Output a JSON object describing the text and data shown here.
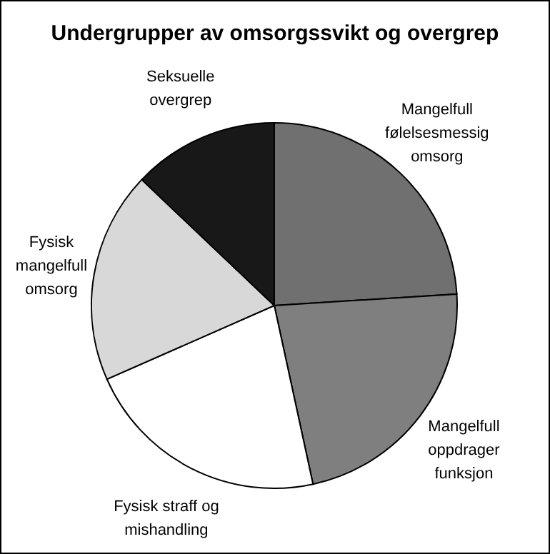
{
  "chart_data": {
    "type": "pie",
    "title": "Undergrupper av omsorgssvikt og overgrep",
    "categories": [
      "Mangelfull\nfølelsesmessig\nomsorg",
      "Mangelfull\noppdrager\nfunksjon",
      "Fysisk straff og\nmishandling",
      "Fysisk\nmangelfull\nomsorg",
      "Seksuelle\novergrep"
    ],
    "values": [
      24,
      22.6,
      21.8,
      18.7,
      12.9
    ],
    "colors": [
      "#707070",
      "#7f7f7f",
      "#ffffff",
      "#d8d8d8",
      "#181818"
    ]
  }
}
